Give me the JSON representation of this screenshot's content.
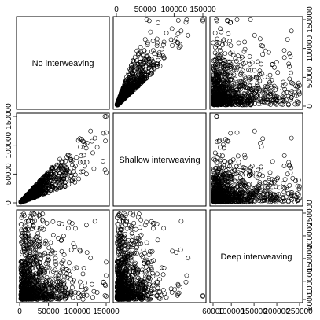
{
  "chart_data": {
    "type": "scatter",
    "subtype": "scatterplot-matrix",
    "title": "",
    "variables": [
      "No interweaving",
      "Shallow interweaving",
      "Deep interweaving"
    ],
    "point_style": "open-circle",
    "point_color": "#000000",
    "point_count_per_panel": 1000,
    "axes": {
      "No interweaving": {
        "range": [
          0,
          150000
        ],
        "ticks": [
          0,
          50000,
          100000,
          150000
        ],
        "tick_labels": [
          "0",
          "50000",
          "100000",
          "150000"
        ]
      },
      "Shallow interweaving": {
        "range": [
          0,
          150000
        ],
        "ticks": [
          0,
          50000,
          100000,
          150000
        ],
        "tick_labels": [
          "0",
          "50000",
          "100000",
          "150000"
        ]
      },
      "Deep interweaving": {
        "range": [
          60000,
          250000
        ],
        "ticks": [
          60000,
          100000,
          150000,
          200000,
          250000
        ],
        "tick_labels": [
          "60000",
          "100000",
          "150000",
          "200000",
          "250000"
        ]
      }
    },
    "relationships": {
      "No interweaving vs Shallow interweaving": "strong positive, fan-shaped, dense near origin",
      "No interweaving vs Deep interweaving": "weak, dense cluster at low-mid x, scattered high values",
      "Shallow interweaving vs Deep interweaving": "weak, dense cluster at low x, scattered high values"
    },
    "grid": false,
    "legend": "none"
  }
}
